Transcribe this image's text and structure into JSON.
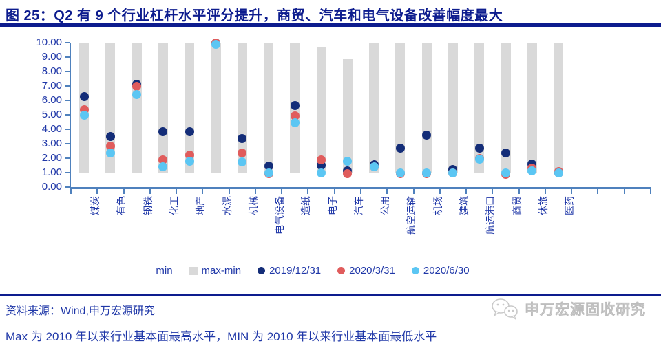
{
  "title": "图 25：Q2 有 9 个行业杠杆水平评分提升，商贸、汽车和电气设备改善幅度最大",
  "footer": {
    "source": "资料来源：Wind,申万宏源研究",
    "note": "Max 为 2010 年以来行业基本面最高水平，MIN 为 2010 年以来行业基本面最低水平",
    "watermark": "申万宏源固收研究"
  },
  "colors": {
    "navy": "#0d1c8e",
    "text_blue": "#2038a8",
    "axis_line": "#4f81bd",
    "bar_gray": "#d9d9d9",
    "dot_2019": "#142d78",
    "dot_2020q1": "#e05c5c",
    "dot_2020q2": "#5bc6f3",
    "watermark_gray": "#c7c7c7"
  },
  "chart_data": {
    "type": "scatter",
    "title": "",
    "xlabel": "",
    "ylabel": "",
    "ylim": [
      0,
      10
    ],
    "ytick_labels": [
      "10.00",
      "9.00",
      "8.00",
      "7.00",
      "6.00",
      "5.00",
      "4.00",
      "3.00",
      "2.00",
      "1.00",
      "0.00"
    ],
    "grid": false,
    "legend_position": "bottom",
    "categories": [
      "煤炭",
      "有色",
      "钢铁",
      "化工",
      "地产",
      "水泥",
      "机械",
      "电气设备",
      "造纸",
      "电子",
      "汽车",
      "公用",
      "航空运输",
      "机场",
      "建筑",
      "航运港口",
      "商贸",
      "休旅",
      "医药"
    ],
    "series": [
      {
        "name": "min",
        "role": "range-min",
        "marker": "none",
        "values": [
          1,
          1,
          1,
          1,
          1,
          1,
          1,
          1,
          1,
          1,
          1,
          1,
          1,
          1,
          1,
          1,
          1,
          1,
          1
        ]
      },
      {
        "name": "max-min",
        "role": "range-bar",
        "marker": "square",
        "color": "#d9d9d9",
        "values": [
          10,
          10,
          10,
          10,
          10,
          10,
          10,
          10,
          10,
          9.7,
          8.85,
          10,
          10,
          10,
          10,
          10,
          10,
          10,
          10
        ]
      },
      {
        "name": "2019/12/31",
        "role": "dots",
        "marker": "circle",
        "color": "#142d78",
        "values": [
          6.25,
          3.5,
          7.1,
          3.85,
          3.85,
          10,
          3.35,
          1.45,
          5.65,
          1.5,
          1.1,
          1.55,
          2.7,
          3.6,
          1.2,
          2.7,
          2.35,
          1.6,
          1.0
        ]
      },
      {
        "name": "2020/3/31",
        "role": "dots",
        "marker": "circle",
        "color": "#e05c5c",
        "values": [
          5.35,
          2.85,
          7.0,
          1.9,
          2.2,
          10,
          2.35,
          0.95,
          4.95,
          1.9,
          0.95,
          1.4,
          0.95,
          0.95,
          1.0,
          2.0,
          0.9,
          1.3,
          1.05
        ]
      },
      {
        "name": "2020/6/30",
        "role": "dots",
        "marker": "circle",
        "color": "#5bc6f3",
        "values": [
          5.0,
          2.35,
          6.4,
          1.4,
          1.8,
          9.9,
          1.75,
          1.0,
          4.45,
          1.0,
          1.8,
          1.4,
          1.0,
          1.0,
          1.0,
          1.95,
          1.0,
          1.1,
          1.0
        ]
      }
    ]
  }
}
